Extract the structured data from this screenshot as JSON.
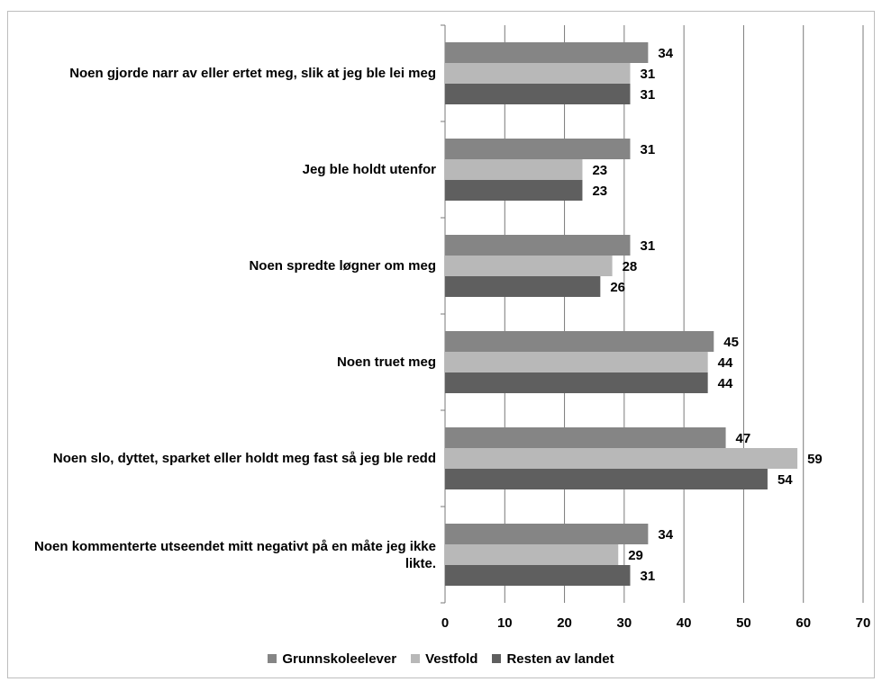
{
  "chart_data": {
    "type": "bar",
    "orientation": "horizontal",
    "categories": [
      "Noen gjorde narr av eller ertet meg, slik at jeg ble lei meg",
      "Jeg ble holdt utenfor",
      "Noen spredte løgner om meg",
      "Noen truet meg",
      "Noen slo, dyttet, sparket eller holdt meg fast så jeg ble redd",
      "Noen kommenterte utseendet mitt negativt på en måte jeg ikke likte."
    ],
    "series": [
      {
        "name": "Grunnskoleelever",
        "color": "#858585",
        "values": [
          34,
          31,
          31,
          45,
          47,
          34
        ]
      },
      {
        "name": "Vestfold",
        "color": "#b8b8b8",
        "values": [
          31,
          23,
          28,
          44,
          59,
          29
        ]
      },
      {
        "name": "Resten av landet",
        "color": "#5f5f5f",
        "values": [
          31,
          23,
          26,
          44,
          54,
          31
        ]
      }
    ],
    "xlim": [
      0,
      70
    ],
    "xticks": [
      "0",
      "10",
      "20",
      "30",
      "40",
      "50",
      "60",
      "70"
    ],
    "grid": true,
    "legend_position": "bottom",
    "data_labels": true
  }
}
